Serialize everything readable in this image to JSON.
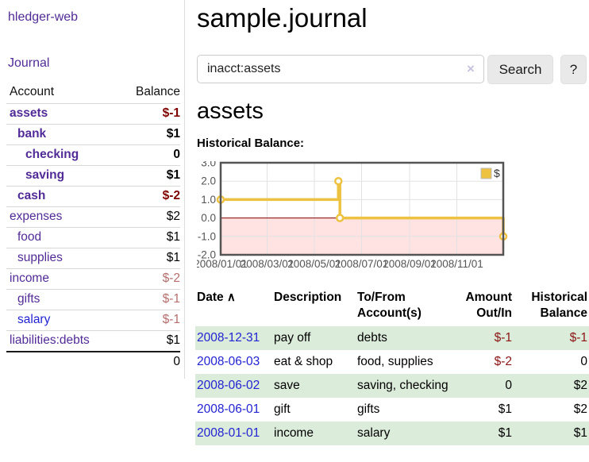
{
  "app": {
    "title": "hledger-web",
    "nav_journal": "Journal"
  },
  "colors": {
    "link_purple": "#512b96",
    "link_blue": "#2323d2",
    "neg_strong": "#7e0101",
    "neg_soft": "#b66e6e",
    "neg_table": "#8b1515",
    "stripe_green": "#dcecdb",
    "chart_line": "#edc240",
    "chart_negative_fill": "#ffe2e2",
    "chart_zero_line": "#8b0000",
    "chart_grid": "#e2e2e2",
    "chart_border": "#545454",
    "chart_label": "#545454"
  },
  "sidebar": {
    "headers": {
      "account": "Account",
      "balance": "Balance"
    },
    "rows": [
      {
        "account": "assets",
        "indent": 1,
        "bold": true,
        "link": "purple",
        "balance": "$-1",
        "bal_style": "neg-bold"
      },
      {
        "account": "bank",
        "indent": 2,
        "bold": true,
        "link": "purple",
        "balance": "$1",
        "bal_style": "pos-bold"
      },
      {
        "account": "checking",
        "indent": 3,
        "bold": true,
        "link": "purple",
        "balance": "0",
        "bal_style": "pos-bold"
      },
      {
        "account": "saving",
        "indent": 3,
        "bold": true,
        "link": "purple",
        "balance": "$1",
        "bal_style": "pos-bold"
      },
      {
        "account": "cash",
        "indent": 2,
        "bold": true,
        "link": "purple",
        "balance": "$-2",
        "bal_style": "neg-bold"
      },
      {
        "account": "expenses",
        "indent": 1,
        "bold": false,
        "link": "purple",
        "balance": "$2",
        "bal_style": "pos"
      },
      {
        "account": "food",
        "indent": 2,
        "bold": false,
        "link": "purple",
        "balance": "$1",
        "bal_style": "pos"
      },
      {
        "account": "supplies",
        "indent": 2,
        "bold": false,
        "link": "purple",
        "balance": "$1",
        "bal_style": "pos"
      },
      {
        "account": "income",
        "indent": 1,
        "bold": false,
        "link": "purple",
        "balance": "$-2",
        "bal_style": "neg-soft"
      },
      {
        "account": "gifts",
        "indent": 2,
        "bold": false,
        "link": "purple",
        "balance": "$-1",
        "bal_style": "neg-soft"
      },
      {
        "account": "salary",
        "indent": 2,
        "bold": false,
        "link": "blue",
        "balance": "$-1",
        "bal_style": "neg-soft"
      },
      {
        "account": "liabilities:debts",
        "indent": 1,
        "bold": false,
        "link": "purple",
        "balance": "$1",
        "bal_style": "pos"
      }
    ],
    "total": "0"
  },
  "header": {
    "title": "sample.journal"
  },
  "search": {
    "value": "inacct:assets",
    "clear_icon": "×",
    "button": "Search",
    "help_button": "?"
  },
  "main": {
    "heading": "assets",
    "chart_label": "Historical Balance:"
  },
  "chart_data": {
    "type": "line",
    "title": "Historical Balance:",
    "step": true,
    "series": [
      {
        "name": "$",
        "points": [
          [
            "2008-01-01",
            1
          ],
          [
            "2008-06-01",
            2
          ],
          [
            "2008-06-03",
            0
          ],
          [
            "2008-12-31",
            -1
          ]
        ]
      }
    ],
    "x_range": [
      "2008-01-01",
      "2008-12-31"
    ],
    "x_ticks": [
      "2008/01/01",
      "2008/03/01",
      "2008/05/01",
      "2008/07/01",
      "2008/09/01",
      "2008/11/01"
    ],
    "y_ticks": [
      3.0,
      2.0,
      1.0,
      0.0,
      -1.0,
      -2.0
    ],
    "ylim": [
      -2,
      3
    ],
    "grid": true,
    "legend": "$",
    "legend_position": "top-right",
    "negative_region_shaded": true
  },
  "register": {
    "headers": {
      "date": "Date",
      "sort_icon": "∧",
      "description": "Description",
      "tofrom_1": "To/From",
      "tofrom_2": "Account(s)",
      "amount_1": "Amount",
      "amount_2": "Out/In",
      "balance_1": "Historical",
      "balance_2": "Balance"
    },
    "rows": [
      {
        "date": "2008-12-31",
        "description": "pay off",
        "accounts": "debts",
        "amount": "$-1",
        "amount_neg": true,
        "balance": "$-1",
        "balance_neg": true,
        "striped": true
      },
      {
        "date": "2008-06-03",
        "description": "eat & shop",
        "accounts": "food, supplies",
        "amount": "$-2",
        "amount_neg": true,
        "balance": "0",
        "balance_neg": false,
        "striped": false
      },
      {
        "date": "2008-06-02",
        "description": "save",
        "accounts": "saving, checking",
        "amount": "0",
        "amount_neg": false,
        "balance": "$2",
        "balance_neg": false,
        "striped": true
      },
      {
        "date": "2008-06-01",
        "description": "gift",
        "accounts": "gifts",
        "amount": "$1",
        "amount_neg": false,
        "balance": "$2",
        "balance_neg": false,
        "striped": false
      },
      {
        "date": "2008-01-01",
        "description": "income",
        "accounts": "salary",
        "amount": "$1",
        "amount_neg": false,
        "balance": "$1",
        "balance_neg": false,
        "striped": true
      }
    ]
  }
}
